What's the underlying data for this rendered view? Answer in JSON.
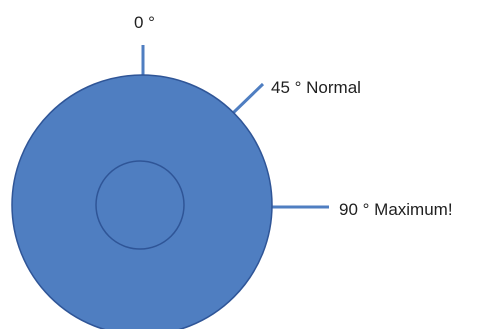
{
  "colors": {
    "disc_fill": "#4f7ec1",
    "disc_stroke": "#2f5597",
    "tick_line": "#4f7ec1",
    "label_text": "#1f1f1f"
  },
  "labels": {
    "zero": "0 °",
    "normal": "45 ° Normal",
    "maximum": "90 ° Maximum!"
  }
}
